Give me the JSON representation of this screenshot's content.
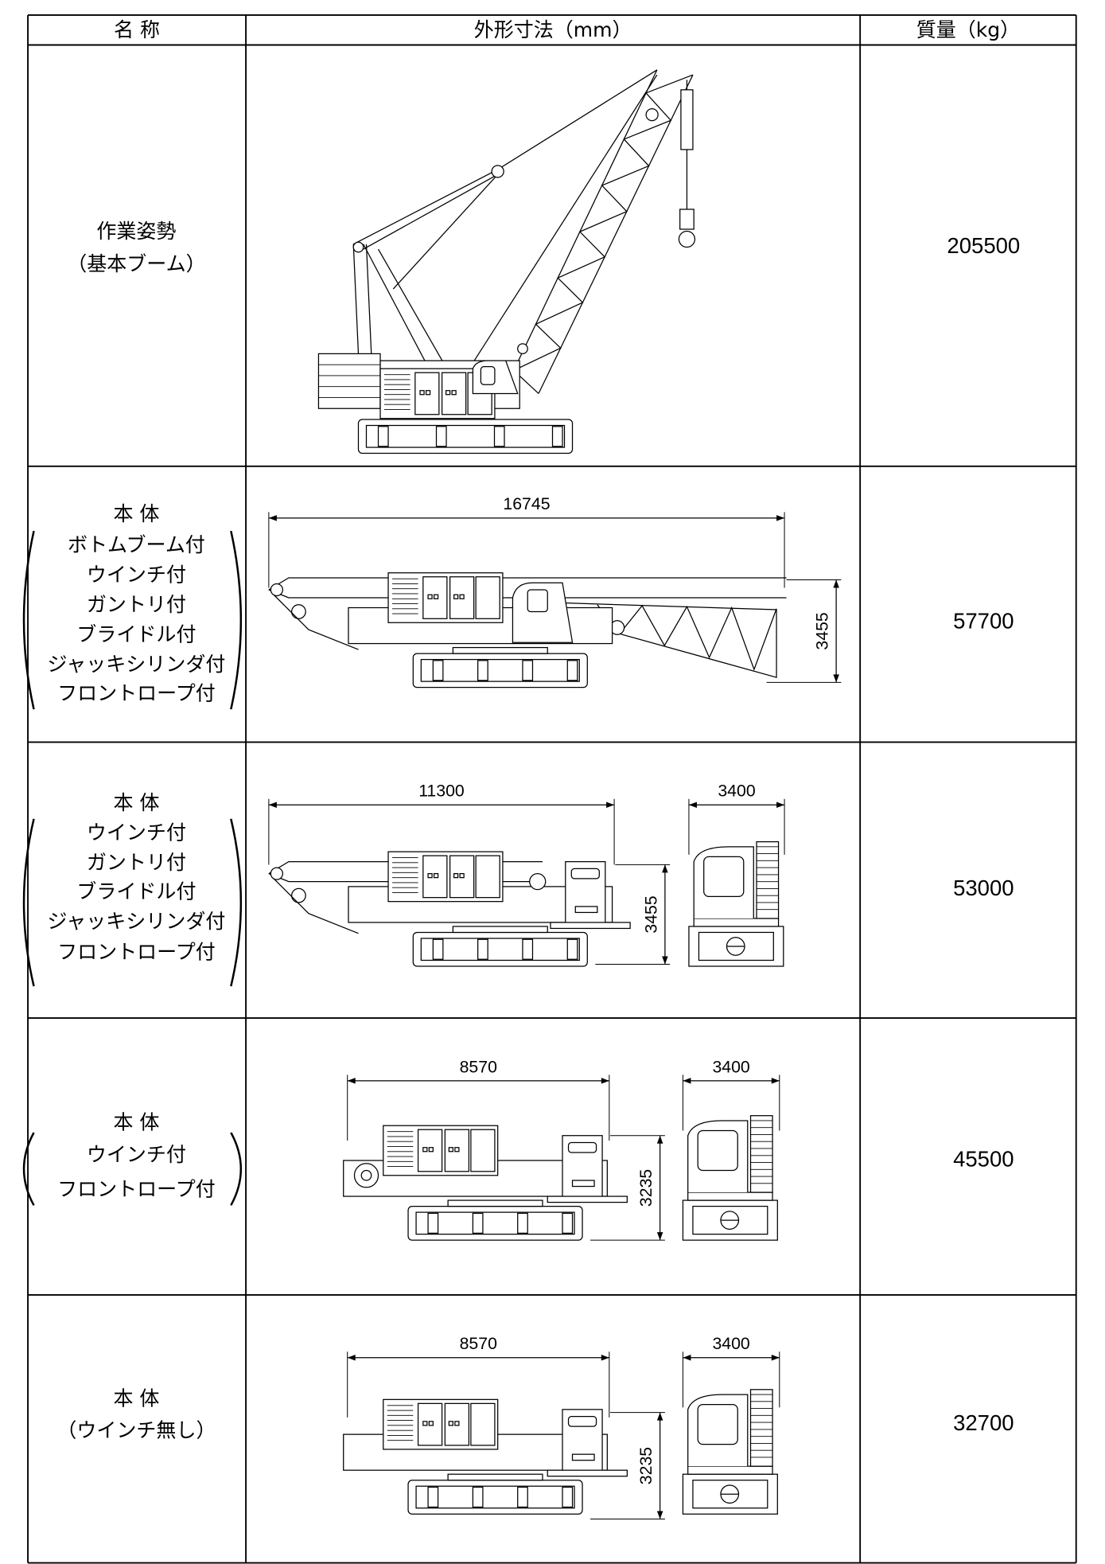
{
  "table": {
    "header": [
      "名 称",
      "外形寸法（mm）",
      "質量（kg）"
    ],
    "rows": [
      {
        "name": [
          "作業姿勢",
          "（基本ブーム）"
        ],
        "dimensions": [],
        "mass": "205500"
      },
      {
        "name": [
          "本 体",
          "ボトムブーム付",
          "ウインチ付",
          "ガントリ付",
          "ブライドル付",
          "ジャッキシリンダ付",
          "フロントロープ付"
        ],
        "dimensions": [
          "16745",
          "3455"
        ],
        "mass": "57700"
      },
      {
        "name": [
          "本 体",
          "ウインチ付",
          "ガントリ付",
          "ブライドル付",
          "ジャッキシリンダ付",
          "フロントロープ付"
        ],
        "dimensions": [
          "11300",
          "3400",
          "3455"
        ],
        "mass": "53000"
      },
      {
        "name": [
          "本 体",
          "ウインチ付",
          "フロントロープ付"
        ],
        "dimensions": [
          "8570",
          "3400",
          "3235"
        ],
        "mass": "45500"
      },
      {
        "name": [
          "本 体",
          "（ウインチ無し）"
        ],
        "dimensions": [
          "8570",
          "3400",
          "3235"
        ],
        "mass": "32700"
      }
    ]
  }
}
